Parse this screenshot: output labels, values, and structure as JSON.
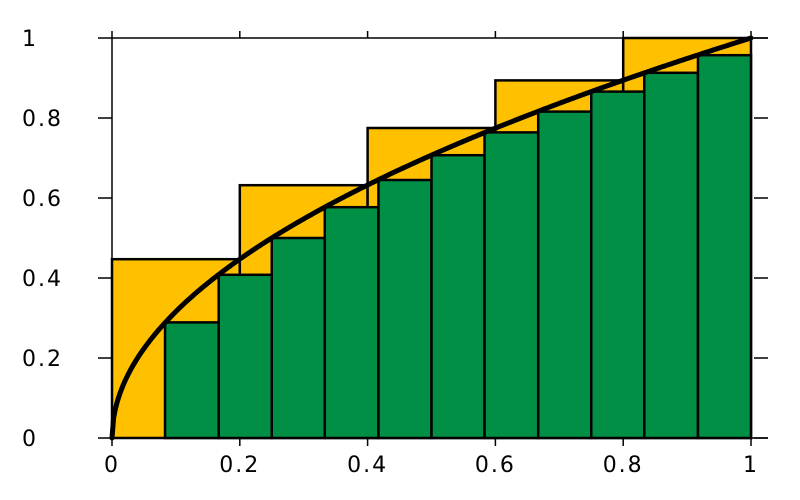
{
  "chart_data": {
    "type": "bar",
    "title": "",
    "xlabel": "",
    "ylabel": "",
    "xlim": [
      0,
      1
    ],
    "ylim": [
      0,
      1
    ],
    "grid": false,
    "function": "sqrt(x)",
    "xticks": [
      "0",
      "0.2",
      "0.4",
      "0.6",
      "0.8",
      "1"
    ],
    "yticks": [
      "0",
      "0.2",
      "0.4",
      "0.6",
      "0.8",
      "1"
    ],
    "upper_sum": {
      "color": "#ffc000",
      "intervals": [
        [
          0,
          0.2
        ],
        [
          0.2,
          0.4
        ],
        [
          0.4,
          0.6
        ],
        [
          0.6,
          0.8
        ],
        [
          0.8,
          1.0
        ]
      ],
      "values": [
        0.447,
        0.632,
        0.775,
        0.894,
        1.0
      ]
    },
    "lower_sum": {
      "color": "#008f45",
      "intervals": [
        [
          0,
          0.083
        ],
        [
          0.083,
          0.167
        ],
        [
          0.167,
          0.25
        ],
        [
          0.25,
          0.333
        ],
        [
          0.333,
          0.417
        ],
        [
          0.417,
          0.5
        ],
        [
          0.5,
          0.583
        ],
        [
          0.583,
          0.667
        ],
        [
          0.667,
          0.75
        ],
        [
          0.75,
          0.833
        ],
        [
          0.833,
          0.917
        ],
        [
          0.917,
          1.0
        ]
      ],
      "values": [
        0,
        0.289,
        0.408,
        0.5,
        0.577,
        0.645,
        0.707,
        0.764,
        0.816,
        0.866,
        0.913,
        0.957
      ]
    },
    "curve_color": "#000000"
  }
}
